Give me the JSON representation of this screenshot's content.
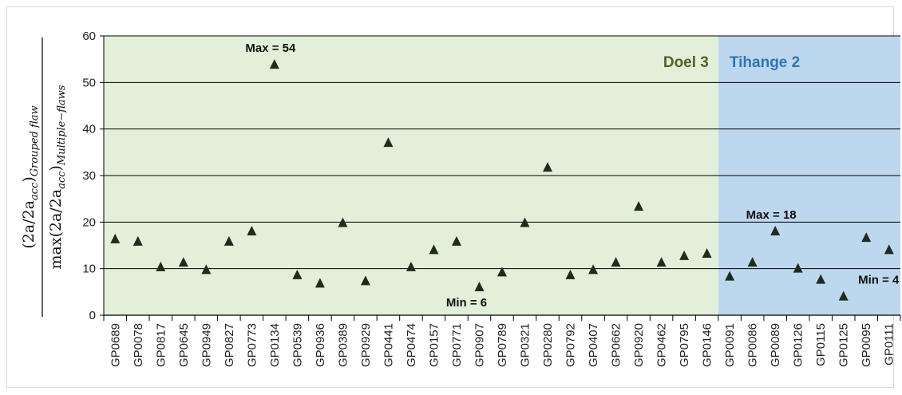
{
  "chart_data": {
    "type": "scatter",
    "marker": "triangle",
    "ylabel_numerator": "(2a/2a",
    "ylabel_numerator_sub1": "acc",
    "ylabel_numerator_close": ")",
    "ylabel_numerator_sub2": "Grouped flaw",
    "ylabel_denominator": "max(2a/2a",
    "ylabel_denominator_sub1": "acc",
    "ylabel_denominator_close": ")",
    "ylabel_denominator_sub2": "Multiple−flaws",
    "ylim": [
      0,
      60
    ],
    "yticks": [
      "0",
      "10",
      "20",
      "30",
      "40",
      "50",
      "60"
    ],
    "grid": true,
    "categories": [
      "GP0689",
      "GP0078",
      "GP0817",
      "GP0645",
      "GP0949",
      "GP0827",
      "GP0773",
      "GP0134",
      "GP0539",
      "GP0936",
      "GP0389",
      "GP0929",
      "GP0441",
      "GP0474",
      "GP0157",
      "GP0771",
      "GP0907",
      "GP0789",
      "GP0321",
      "GP0280",
      "GP0792",
      "GP0407",
      "GP0662",
      "GP0920",
      "GP0462",
      "GP0795",
      "GP0146",
      "GP0091",
      "GP0086",
      "GP0089",
      "GP0126",
      "GP0115",
      "GP0125",
      "GP0095",
      "GP0111"
    ],
    "values": [
      16.3,
      15.8,
      10.3,
      11.3,
      9.7,
      15.8,
      18.0,
      53.8,
      8.6,
      6.8,
      19.8,
      7.3,
      37.0,
      10.3,
      14.0,
      15.8,
      6.0,
      9.2,
      19.8,
      31.7,
      8.6,
      9.7,
      11.3,
      23.3,
      11.3,
      12.7,
      13.2,
      8.3,
      11.3,
      18.0,
      10.0,
      7.6,
      4.0,
      16.6,
      14.0
    ],
    "regions": [
      {
        "name": "Doel 3",
        "start": 0,
        "end": 26,
        "fill": "#e2f0d9",
        "text_color": "#4f6228"
      },
      {
        "name": "Tihange 2",
        "start": 27,
        "end": 34,
        "fill": "#bdd7ee",
        "text_color": "#2e75b6"
      }
    ],
    "annotations": [
      {
        "text": "Max = 54",
        "index": 7
      },
      {
        "text": "Min = 6",
        "index": 16
      },
      {
        "text": "Max = 18",
        "index": 29
      },
      {
        "text": "Min = 4",
        "index": 32
      }
    ]
  }
}
